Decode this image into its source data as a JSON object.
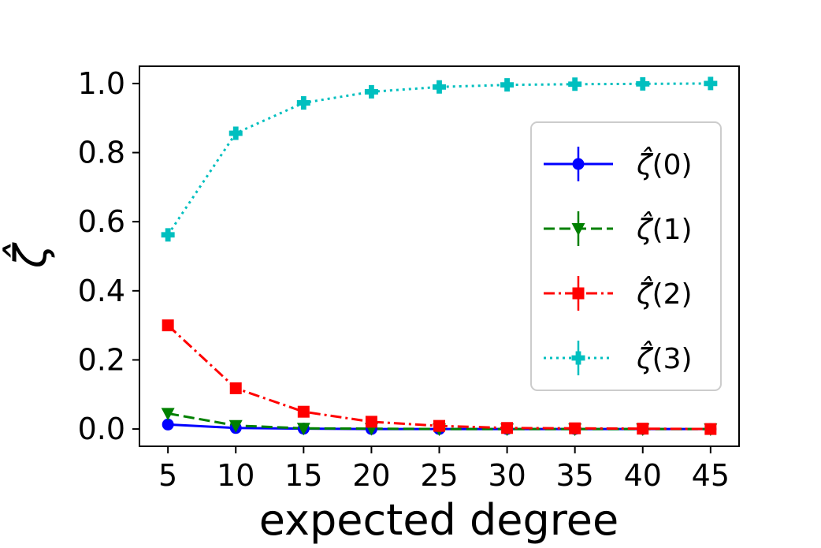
{
  "chart_data": {
    "type": "line",
    "title": "",
    "xlabel": "expected degree",
    "ylabel": "ζ̂",
    "xlim": [
      2.9,
      47.1
    ],
    "ylim": [
      -0.05,
      1.05
    ],
    "x": [
      5,
      10,
      15,
      20,
      25,
      30,
      35,
      40,
      45
    ],
    "xticks": [
      "5",
      "10",
      "15",
      "20",
      "25",
      "30",
      "35",
      "40",
      "45"
    ],
    "yticks": [
      "0.0",
      "0.2",
      "0.4",
      "0.6",
      "0.8",
      "1.0"
    ],
    "ytick_values": [
      0.0,
      0.2,
      0.4,
      0.6,
      0.8,
      1.0
    ],
    "grid": false,
    "legend_position": "center-right",
    "series": [
      {
        "name": "ζ̂(0)",
        "legend_base": "ζ̂",
        "legend_arg": "(0)",
        "color": "#0000ff",
        "linestyle": "solid",
        "marker": "circle",
        "values": [
          0.013,
          0.003,
          0.001,
          0.0,
          0.0,
          0.0,
          0.0,
          0.0,
          0.0
        ]
      },
      {
        "name": "ζ̂(1)",
        "legend_base": "ζ̂",
        "legend_arg": "(1)",
        "color": "#008000",
        "linestyle": "dashed",
        "marker": "triangle-down",
        "values": [
          0.045,
          0.01,
          0.002,
          0.001,
          0.0,
          0.0,
          0.0,
          0.0,
          0.0
        ]
      },
      {
        "name": "ζ̂(2)",
        "legend_base": "ζ̂",
        "legend_arg": "(2)",
        "color": "#ff0000",
        "linestyle": "dashdot",
        "marker": "square",
        "values": [
          0.3,
          0.118,
          0.05,
          0.021,
          0.009,
          0.003,
          0.002,
          0.001,
          0.0
        ]
      },
      {
        "name": "ζ̂(3)",
        "legend_base": "ζ̂",
        "legend_arg": "(3)",
        "color": "#00bfbf",
        "linestyle": "dotted",
        "marker": "plus",
        "values": [
          0.562,
          0.856,
          0.944,
          0.976,
          0.99,
          0.996,
          0.998,
          0.999,
          1.0
        ]
      }
    ]
  }
}
